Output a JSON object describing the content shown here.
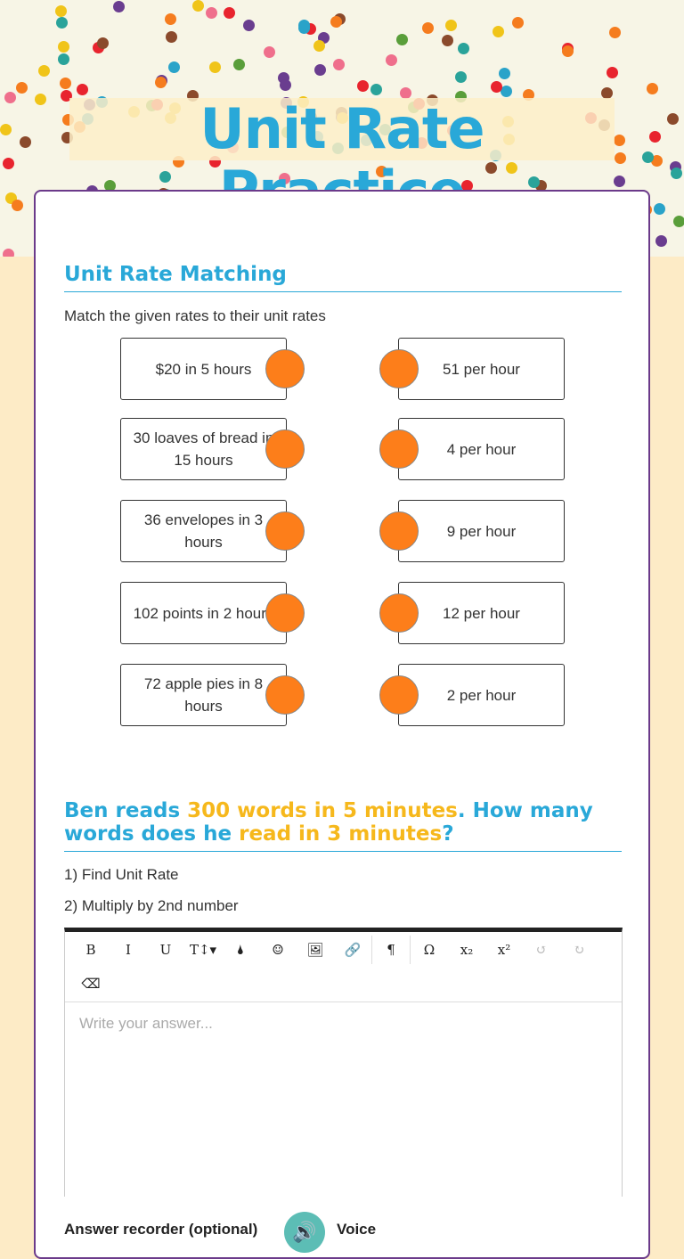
{
  "title": "Unit Rate Practice",
  "section1": {
    "heading": "Unit Rate Matching",
    "instruction": "Match the given rates to their unit rates",
    "left": [
      "$20 in 5 hours",
      "30 loaves of bread in 15 hours",
      "36 envelopes in 3 hours",
      "102 points in 2 hours",
      "72 apple pies in 8 hours"
    ],
    "right": [
      "51 per hour",
      "4 per hour",
      "9 per hour",
      "12 per hour",
      "2 per hour"
    ],
    "knob_color": "#fd7e1a"
  },
  "section2": {
    "q1": "Ben reads ",
    "q2": "300 words in 5 minutes",
    ". ": "",
    "q3": ". How many words does he ",
    "q4": "read in 3 minutes",
    "q5": "?",
    "step1": "1) Find Unit Rate",
    "step2": "2) Multiply by 2nd number",
    "toolbar": [
      "B",
      "I",
      "U",
      "T↕▾",
      "🌢",
      "☺",
      "🖼",
      "🔗",
      "¶",
      "Ω",
      "x₂",
      "x²",
      "↺",
      "↻",
      "⌫"
    ],
    "placeholder": "Write your answer...",
    "recorder_label": "Answer recorder (optional)",
    "voice_label": "Voice"
  },
  "colors": {
    "accent": "#29a8d8",
    "highlight": "#f6b81c",
    "border": "#6b3a8a"
  }
}
